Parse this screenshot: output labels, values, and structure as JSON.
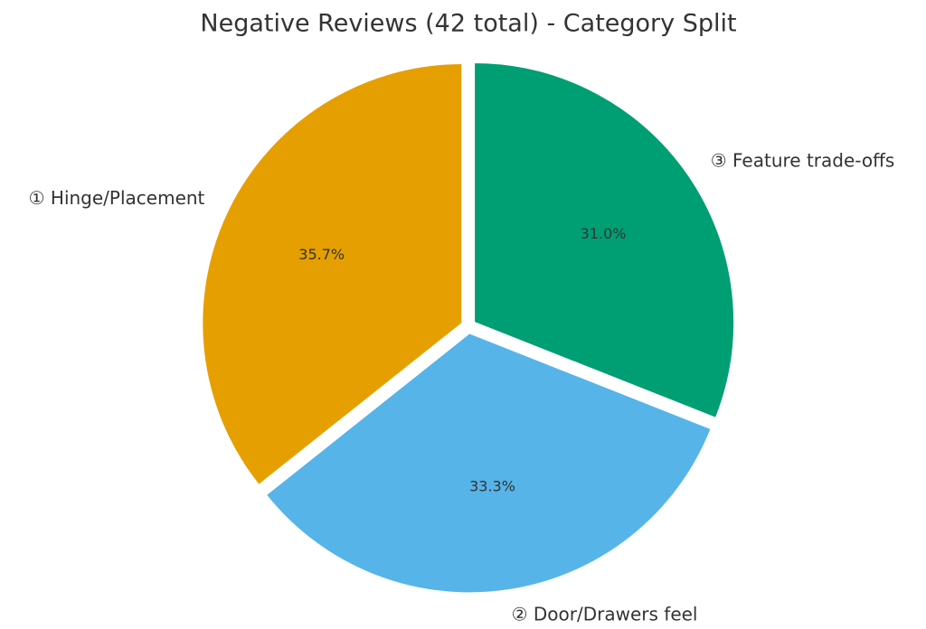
{
  "chart_data": {
    "type": "pie",
    "title": "Negative Reviews (42 total) - Category Split",
    "categories": [
      "① Hinge/Placement",
      "② Door/Drawers feel",
      "③ Feature trade-offs"
    ],
    "values": [
      35.7,
      33.3,
      31.0
    ],
    "value_labels": [
      "35.7%",
      "33.3%",
      "31.0%"
    ],
    "colors": [
      "#E69F00",
      "#56B4E9",
      "#009E73"
    ]
  }
}
